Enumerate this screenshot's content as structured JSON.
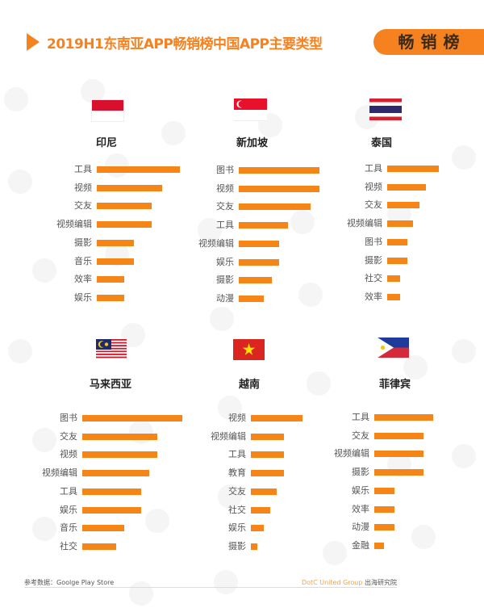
{
  "header": {
    "title": "2019H1东南亚APP畅销榜中国APP主要类型",
    "badge": "畅销榜",
    "accent_color": "#f5821f"
  },
  "footer": {
    "source": "参考数据：Goolge Play Store",
    "brand": "DotC United Group",
    "brand_suffix": "出海研究院"
  },
  "chart_data": [
    {
      "type": "bar",
      "orientation": "horizontal",
      "title": "印尼",
      "categories": [
        "工具",
        "视频",
        "交友",
        "视频编辑",
        "摄影",
        "音乐",
        "效率",
        "娱乐"
      ],
      "values": [
        103,
        81,
        68,
        68,
        46,
        46,
        34,
        34
      ],
      "note": "relative bar lengths (px), no axis shown"
    },
    {
      "type": "bar",
      "orientation": "horizontal",
      "title": "新加坡",
      "categories": [
        "图书",
        "视频",
        "交友",
        "工具",
        "视频编辑",
        "娱乐",
        "摄影",
        "动漫"
      ],
      "values": [
        100,
        100,
        89,
        61,
        50,
        50,
        41,
        31
      ]
    },
    {
      "type": "bar",
      "orientation": "horizontal",
      "title": "泰国",
      "categories": [
        "工具",
        "视频",
        "交友",
        "视频编辑",
        "图书",
        "摄影",
        "社交",
        "效率"
      ],
      "values": [
        64,
        48,
        40,
        32,
        25,
        25,
        16,
        16
      ]
    },
    {
      "type": "bar",
      "orientation": "horizontal",
      "title": "马来西亚",
      "categories": [
        "图书",
        "交友",
        "视频",
        "视频编辑",
        "工具",
        "娱乐",
        "音乐",
        "社交"
      ],
      "values": [
        124,
        93,
        93,
        83,
        73,
        73,
        52,
        42
      ]
    },
    {
      "type": "bar",
      "orientation": "horizontal",
      "title": "越南",
      "categories": [
        "视频",
        "视频编辑",
        "工具",
        "教育",
        "交友",
        "社交",
        "娱乐",
        "摄影"
      ],
      "values": [
        64,
        41,
        41,
        41,
        32,
        24,
        16,
        8
      ]
    },
    {
      "type": "bar",
      "orientation": "horizontal",
      "title": "菲律宾",
      "categories": [
        "工具",
        "交友",
        "视频编辑",
        "摄影",
        "娱乐",
        "效率",
        "动漫",
        "金融"
      ],
      "values": [
        73,
        61,
        61,
        61,
        25,
        25,
        25,
        12
      ]
    }
  ]
}
